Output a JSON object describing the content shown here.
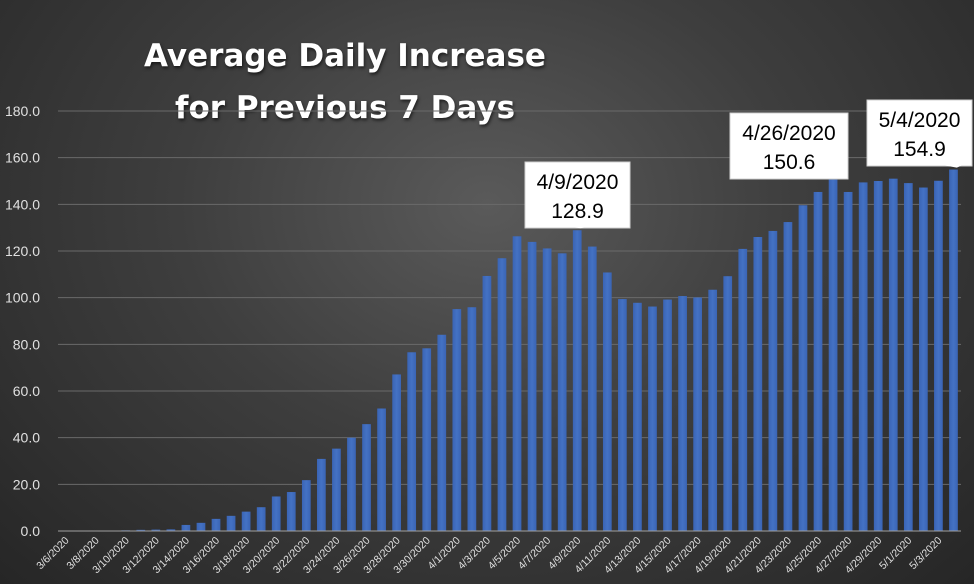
{
  "chart_data": {
    "type": "bar",
    "title_line1": "Average Daily Increase",
    "title_line2": "for Previous 7 Days",
    "xlabel": "",
    "ylabel": "",
    "ylim": [
      0,
      180
    ],
    "yticks": [
      "0.0",
      "20.0",
      "40.0",
      "60.0",
      "80.0",
      "100.0",
      "120.0",
      "140.0",
      "160.0",
      "180.0"
    ],
    "bar_color": "#4472C4",
    "grid": true,
    "categories": [
      "3/6/2020",
      "3/7/2020",
      "3/8/2020",
      "3/9/2020",
      "3/10/2020",
      "3/11/2020",
      "3/12/2020",
      "3/13/2020",
      "3/14/2020",
      "3/15/2020",
      "3/16/2020",
      "3/17/2020",
      "3/18/2020",
      "3/19/2020",
      "3/20/2020",
      "3/21/2020",
      "3/22/2020",
      "3/23/2020",
      "3/24/2020",
      "3/25/2020",
      "3/26/2020",
      "3/27/2020",
      "3/28/2020",
      "3/29/2020",
      "3/30/2020",
      "3/31/2020",
      "4/1/2020",
      "4/2/2020",
      "4/3/2020",
      "4/4/2020",
      "4/5/2020",
      "4/6/2020",
      "4/7/2020",
      "4/8/2020",
      "4/9/2020",
      "4/10/2020",
      "4/11/2020",
      "4/12/2020",
      "4/13/2020",
      "4/14/2020",
      "4/15/2020",
      "4/16/2020",
      "4/17/2020",
      "4/18/2020",
      "4/19/2020",
      "4/20/2020",
      "4/21/2020",
      "4/22/2020",
      "4/23/2020",
      "4/24/2020",
      "4/25/2020",
      "4/26/2020",
      "4/27/2020",
      "4/28/2020",
      "4/29/2020",
      "4/30/2020",
      "5/1/2020",
      "5/2/2020",
      "5/3/2020",
      "5/4/2020"
    ],
    "shown_tick_labels": [
      "3/6/2020",
      "3/8/2020",
      "3/10/2020",
      "3/12/2020",
      "3/14/2020",
      "3/16/2020",
      "3/18/2020",
      "3/20/2020",
      "3/22/2020",
      "3/24/2020",
      "3/26/2020",
      "3/28/2020",
      "3/30/2020",
      "4/1/2020",
      "4/3/2020",
      "4/5/2020",
      "4/7/2020",
      "4/9/2020",
      "4/11/2020",
      "4/13/2020",
      "4/15/2020",
      "4/17/2020",
      "4/19/2020",
      "4/21/2020",
      "4/23/2020",
      "4/25/2020",
      "4/27/2020",
      "4/29/2020",
      "5/1/2020",
      "5/3/2020"
    ],
    "values": [
      0,
      0,
      0,
      0,
      0.3,
      0.5,
      0.6,
      0.7,
      2.6,
      3.5,
      5.2,
      6.5,
      8.3,
      10.2,
      14.8,
      16.7,
      21.8,
      30.9,
      35.3,
      40.0,
      45.8,
      52.5,
      67.1,
      76.6,
      78.3,
      84.1,
      95.1,
      95.9,
      109.3,
      116.9,
      126.3,
      123.9,
      121.1,
      119.0,
      128.9,
      121.9,
      110.8,
      99.4,
      97.8,
      96.2,
      99.2,
      100.7,
      100.1,
      103.4,
      109.2,
      120.9,
      126.0,
      128.6,
      132.4,
      139.6,
      145.3,
      150.6,
      145.3,
      149.4,
      150.0,
      151.0,
      149.1,
      147.2,
      150.1,
      154.9
    ],
    "annotations": [
      {
        "date": "4/9/2020",
        "value": "128.9"
      },
      {
        "date": "4/26/2020",
        "value": "150.6"
      },
      {
        "date": "5/4/2020",
        "value": "154.9"
      }
    ]
  }
}
